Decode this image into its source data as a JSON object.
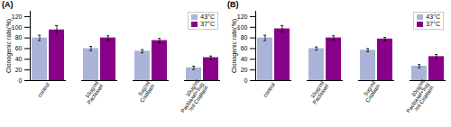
{
  "chart_data": [
    {
      "type": "bar",
      "title": "(A)",
      "categories": [
        "control",
        "10ug/ml\nPaclitaxel",
        "5ug/ml\nCisplatin",
        "10ug/ml\nPaclitaxel+5ug\n/ml Cisplatin"
      ],
      "series": [
        {
          "name": "43°C",
          "color": "#aab4d8",
          "values": [
            80,
            60,
            55,
            24
          ],
          "errors": [
            5,
            4,
            3,
            3
          ]
        },
        {
          "name": "37°C",
          "color": "#880088",
          "values": [
            95,
            80,
            75,
            43
          ],
          "errors": [
            8,
            4,
            4,
            3
          ]
        }
      ],
      "ylabel": "Clonogenic rate(%)",
      "ylim": [
        0,
        130
      ],
      "yticks": [
        0,
        20,
        40,
        60,
        80,
        100,
        120
      ],
      "legend": "upper right"
    },
    {
      "type": "bar",
      "title": "(B)",
      "categories": [
        "control",
        "10ug/ml\nPaclitaxel",
        "5ug/ml\nCisplatin",
        "10ug/ml\nPaclitaxel+5ug\n/ml Cisplatin"
      ],
      "series": [
        {
          "name": "43°C",
          "color": "#aab4d8",
          "values": [
            80,
            60,
            57,
            27
          ],
          "errors": [
            5,
            3,
            3,
            3
          ]
        },
        {
          "name": "37°C",
          "color": "#880088",
          "values": [
            97,
            80,
            78,
            45
          ],
          "errors": [
            6,
            4,
            3,
            4
          ]
        }
      ],
      "ylabel": "Clonogenic rate(%)",
      "ylim": [
        0,
        130
      ],
      "yticks": [
        0,
        20,
        40,
        60,
        80,
        100,
        120
      ],
      "legend": "upper right"
    }
  ]
}
